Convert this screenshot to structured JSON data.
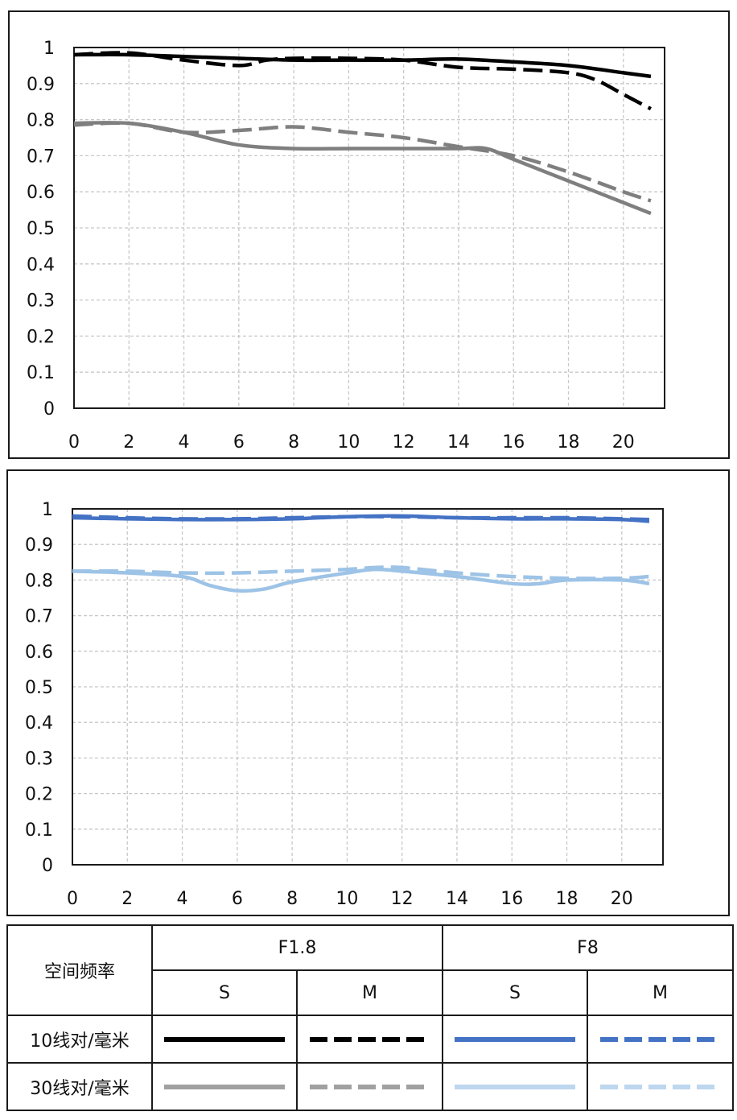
{
  "chart_data": [
    {
      "type": "line",
      "title": "",
      "xlabel": "",
      "ylabel": "",
      "xlim": [
        0,
        21.5
      ],
      "ylim": [
        0,
        1
      ],
      "x_ticks": [
        "0",
        "2",
        "4",
        "6",
        "8",
        "10",
        "12",
        "14",
        "16",
        "18",
        "20"
      ],
      "y_ticks": [
        "0",
        "0.1",
        "0.2",
        "0.3",
        "0.4",
        "0.5",
        "0.6",
        "0.7",
        "0.8",
        "0.9",
        "1"
      ],
      "grid": true,
      "series": [
        {
          "id": "f18_10_s",
          "color": "#000000",
          "dash": "solid",
          "x": [
            0,
            2,
            4,
            6,
            8,
            10,
            12,
            14,
            16,
            18,
            20,
            21
          ],
          "y": [
            0.98,
            0.98,
            0.975,
            0.97,
            0.965,
            0.965,
            0.965,
            0.968,
            0.96,
            0.95,
            0.93,
            0.92
          ]
        },
        {
          "id": "f18_10_m",
          "color": "#000000",
          "dash": "dashed",
          "x": [
            0,
            2,
            4,
            6,
            7,
            8,
            10,
            12,
            14,
            16,
            18,
            19,
            20,
            21
          ],
          "y": [
            0.98,
            0.985,
            0.965,
            0.95,
            0.965,
            0.97,
            0.97,
            0.965,
            0.945,
            0.94,
            0.93,
            0.91,
            0.87,
            0.83
          ]
        },
        {
          "id": "f18_30_s",
          "color": "#7f7f7f",
          "dash": "solid",
          "x": [
            0,
            2,
            4,
            6,
            8,
            10,
            12,
            14,
            15,
            16,
            18,
            20,
            21
          ],
          "y": [
            0.79,
            0.79,
            0.765,
            0.73,
            0.72,
            0.72,
            0.72,
            0.72,
            0.72,
            0.69,
            0.63,
            0.57,
            0.54
          ]
        },
        {
          "id": "f18_30_m",
          "color": "#7f7f7f",
          "dash": "dashed",
          "x": [
            0,
            2,
            4,
            6,
            8,
            10,
            12,
            14,
            16,
            18,
            20,
            21
          ],
          "y": [
            0.785,
            0.79,
            0.765,
            0.77,
            0.78,
            0.765,
            0.75,
            0.725,
            0.7,
            0.655,
            0.6,
            0.575
          ]
        }
      ]
    },
    {
      "type": "line",
      "title": "",
      "xlabel": "",
      "ylabel": "",
      "xlim": [
        0,
        21.5
      ],
      "ylim": [
        0,
        1
      ],
      "x_ticks": [
        "0",
        "2",
        "4",
        "6",
        "8",
        "10",
        "12",
        "14",
        "16",
        "18",
        "20"
      ],
      "y_ticks": [
        "0",
        "0.1",
        "0.2",
        "0.3",
        "0.4",
        "0.5",
        "0.6",
        "0.7",
        "0.8",
        "0.9",
        "1"
      ],
      "grid": true,
      "series": [
        {
          "id": "f8_10_s",
          "color": "#4472c4",
          "dash": "solid",
          "x": [
            0,
            2,
            4,
            6,
            8,
            10,
            12,
            14,
            16,
            18,
            20,
            21
          ],
          "y": [
            0.975,
            0.972,
            0.97,
            0.97,
            0.972,
            0.978,
            0.98,
            0.975,
            0.972,
            0.972,
            0.97,
            0.965
          ]
        },
        {
          "id": "f8_10_m",
          "color": "#4472c4",
          "dash": "dashed",
          "x": [
            0,
            2,
            4,
            6,
            8,
            10,
            12,
            14,
            16,
            18,
            20,
            21
          ],
          "y": [
            0.98,
            0.975,
            0.972,
            0.972,
            0.975,
            0.978,
            0.978,
            0.975,
            0.975,
            0.975,
            0.972,
            0.97
          ]
        },
        {
          "id": "f8_30_s",
          "color": "#9dc3e6",
          "dash": "solid",
          "x": [
            0,
            2,
            4,
            5,
            6,
            7,
            8,
            10,
            11,
            12,
            14,
            16,
            17,
            18,
            20,
            21
          ],
          "y": [
            0.825,
            0.82,
            0.81,
            0.785,
            0.77,
            0.775,
            0.795,
            0.82,
            0.83,
            0.825,
            0.81,
            0.79,
            0.79,
            0.8,
            0.8,
            0.79
          ]
        },
        {
          "id": "f8_30_m",
          "color": "#9dc3e6",
          "dash": "dashed",
          "x": [
            0,
            2,
            4,
            6,
            8,
            10,
            11,
            12,
            14,
            16,
            18,
            20,
            21
          ],
          "y": [
            0.825,
            0.825,
            0.82,
            0.82,
            0.825,
            0.83,
            0.835,
            0.835,
            0.82,
            0.81,
            0.805,
            0.805,
            0.81
          ]
        }
      ]
    }
  ],
  "legend": {
    "header_label": "空间频率",
    "group_f18": "F1.8",
    "group_f8": "F8",
    "col_s1": "S",
    "col_m1": "M",
    "col_s2": "S",
    "col_m2": "M",
    "row_10": "10线对/毫米",
    "row_30": "30线对/毫米",
    "colors": {
      "f18_10": "#000000",
      "f18_30": "#a0a0a0",
      "f8_10": "#4472c4",
      "f8_30": "#bdd7ee"
    }
  }
}
